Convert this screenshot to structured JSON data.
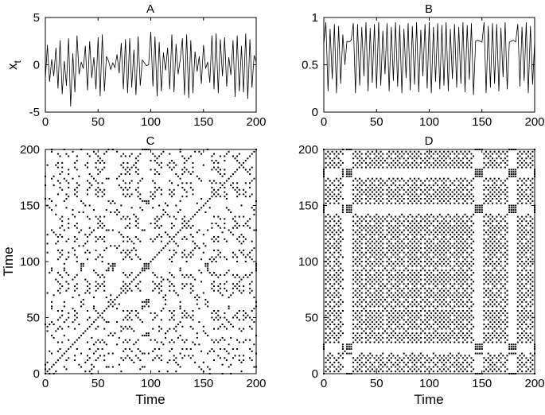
{
  "chart_data": [
    {
      "id": "A",
      "type": "line",
      "title": "A",
      "xlabel": "",
      "ylabel": "x",
      "ylabel_subscript": "t",
      "xlim": [
        0,
        200
      ],
      "ylim": [
        -5,
        5
      ],
      "xticks": [
        0,
        50,
        100,
        150,
        200
      ],
      "yticks": [
        -5,
        0,
        5
      ],
      "grid": false,
      "series": [
        {
          "x": [
            0,
            2,
            4,
            6,
            8,
            10,
            12,
            14,
            16,
            18,
            20,
            22,
            24,
            26,
            28,
            30,
            32,
            34,
            36,
            38,
            40,
            42,
            44,
            46,
            48,
            50,
            52,
            54,
            56,
            58,
            60,
            62,
            64,
            66,
            68,
            70,
            72,
            74,
            76,
            78,
            80,
            82,
            84,
            86,
            88,
            90,
            92,
            94,
            96,
            98,
            100,
            102,
            104,
            106,
            108,
            110,
            112,
            114,
            116,
            118,
            120,
            122,
            124,
            126,
            128,
            130,
            132,
            134,
            136,
            138,
            140,
            142,
            144,
            146,
            148,
            150,
            152,
            154,
            156,
            158,
            160,
            162,
            164,
            166,
            168,
            170,
            172,
            174,
            176,
            178,
            180,
            182,
            184,
            186,
            188,
            190,
            192,
            194,
            196,
            198,
            200
          ],
          "y": [
            -1.5,
            2.1,
            -1.8,
            0.6,
            -1.2,
            1.8,
            -2.5,
            2.6,
            -3.1,
            0.4,
            -2.2,
            2.8,
            -4.4,
            1.2,
            -2.9,
            3.1,
            -1.0,
            0.3,
            -0.4,
            2.0,
            -2.7,
            2.5,
            -1.4,
            0.8,
            -2.6,
            2.9,
            -3.3,
            3.2,
            -2.8,
            0.9,
            0.4,
            -0.5,
            0.2,
            -0.3,
            1.1,
            -0.9,
            2.3,
            -2.6,
            2.7,
            -3.0,
            2.8,
            -2.4,
            1.6,
            -3.2,
            3.0,
            -2.2,
            0.5,
            0.2,
            -0.1,
            0.0,
            3.5,
            -2.3,
            3.0,
            -3.3,
            2.4,
            -2.8,
            1.3,
            -0.6,
            1.8,
            -2.6,
            3.2,
            -2.9,
            2.2,
            -1.0,
            0.6,
            2.8,
            -3.2,
            3.2,
            -3.5,
            2.6,
            -3.0,
            1.4,
            -0.7,
            0.9,
            -2.0,
            2.1,
            -0.4,
            0.3,
            -1.9,
            3.1,
            -2.6,
            3.3,
            -3.0,
            2.7,
            -1.2,
            2.9,
            -2.3,
            0.8,
            -1.1,
            2.6,
            -3.4,
            3.1,
            -2.8,
            2.0,
            -2.9,
            3.3,
            -3.6,
            2.7,
            -2.4,
            1.0,
            0.3
          ]
        }
      ]
    },
    {
      "id": "B",
      "type": "line",
      "title": "B",
      "xlabel": "",
      "ylabel": "",
      "xlim": [
        0,
        200
      ],
      "ylim": [
        0,
        1
      ],
      "xticks": [
        0,
        50,
        100,
        150,
        200
      ],
      "yticks": [
        0,
        0.5,
        1
      ],
      "grid": false,
      "series": [
        {
          "x": [
            0,
            2,
            4,
            6,
            8,
            10,
            12,
            14,
            16,
            18,
            20,
            22,
            24,
            26,
            28,
            30,
            32,
            34,
            36,
            38,
            40,
            42,
            44,
            46,
            48,
            50,
            52,
            54,
            56,
            58,
            60,
            62,
            64,
            66,
            68,
            70,
            72,
            74,
            76,
            78,
            80,
            82,
            84,
            86,
            88,
            90,
            92,
            94,
            96,
            98,
            100,
            102,
            104,
            106,
            108,
            110,
            112,
            114,
            116,
            118,
            120,
            122,
            124,
            126,
            128,
            130,
            132,
            134,
            136,
            138,
            140,
            142,
            144,
            146,
            148,
            150,
            152,
            154,
            156,
            158,
            160,
            162,
            164,
            166,
            168,
            170,
            172,
            174,
            176,
            178,
            180,
            182,
            184,
            186,
            188,
            190,
            192,
            194,
            196,
            198,
            200
          ],
          "y": [
            0.72,
            0.95,
            0.22,
            0.88,
            0.35,
            0.93,
            0.2,
            0.91,
            0.3,
            0.82,
            0.5,
            0.75,
            0.74,
            0.76,
            0.94,
            0.2,
            0.93,
            0.28,
            0.9,
            0.38,
            0.95,
            0.22,
            0.89,
            0.31,
            0.93,
            0.25,
            0.95,
            0.28,
            0.86,
            0.4,
            0.94,
            0.22,
            0.9,
            0.33,
            0.95,
            0.27,
            0.92,
            0.2,
            0.88,
            0.36,
            0.94,
            0.23,
            0.91,
            0.29,
            0.95,
            0.21,
            0.87,
            0.38,
            0.93,
            0.25,
            0.95,
            0.2,
            0.9,
            0.32,
            0.94,
            0.24,
            0.92,
            0.28,
            0.95,
            0.22,
            0.88,
            0.35,
            0.93,
            0.26,
            0.9,
            0.3,
            0.95,
            0.21,
            0.92,
            0.34,
            0.94,
            0.18,
            0.75,
            0.76,
            0.75,
            0.74,
            0.95,
            0.2,
            0.91,
            0.26,
            0.94,
            0.3,
            0.93,
            0.22,
            0.89,
            0.37,
            0.95,
            0.24,
            0.74,
            0.75,
            0.76,
            0.74,
            0.93,
            0.27,
            0.9,
            0.33,
            0.95,
            0.2,
            0.91,
            0.29,
            0.75
          ]
        }
      ]
    },
    {
      "id": "C",
      "type": "scatter",
      "title": "C",
      "xlabel": "Time",
      "ylabel": "Time",
      "xlim": [
        0,
        200
      ],
      "ylim": [
        0,
        200
      ],
      "xticks": [
        0,
        50,
        100,
        150,
        200
      ],
      "yticks": [
        0,
        50,
        100,
        150,
        200
      ],
      "grid": false,
      "recurrence_source": "A",
      "note_values": "recurrence plot of series A: point plotted where |x_i - x_j| below threshold",
      "threshold": 0.45
    },
    {
      "id": "D",
      "type": "scatter",
      "title": "D",
      "xlabel": "Time",
      "ylabel": "",
      "xlim": [
        0,
        200
      ],
      "ylim": [
        0,
        200
      ],
      "xticks": [
        0,
        50,
        100,
        150,
        200
      ],
      "yticks": [
        0,
        50,
        100,
        150,
        200
      ],
      "grid": false,
      "recurrence_source": "B",
      "threshold": 0.09
    }
  ]
}
